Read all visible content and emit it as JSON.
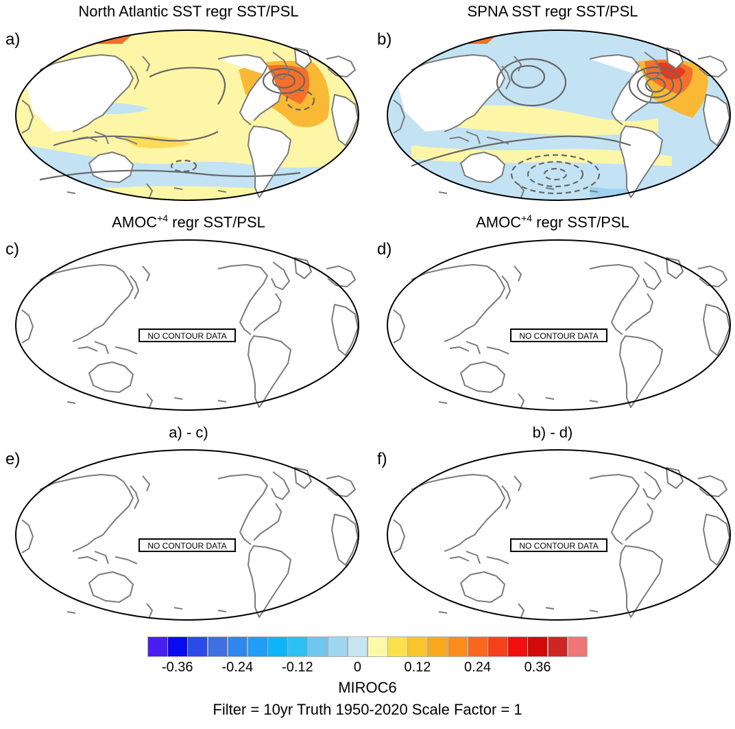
{
  "panels": [
    {
      "letter": "a)",
      "title": "North Atlantic SST regr SST/PSL",
      "title_sup": "",
      "title_tail": "",
      "has_data": true,
      "variant": "nasst"
    },
    {
      "letter": "b)",
      "title": "SPNA SST regr SST/PSL",
      "title_sup": "",
      "title_tail": "",
      "has_data": true,
      "variant": "spna"
    },
    {
      "letter": "c)",
      "title": "AMOC",
      "title_sup": "+4",
      "title_tail": " regr SST/PSL",
      "has_data": false,
      "message": "NO CONTOUR DATA"
    },
    {
      "letter": "d)",
      "title": "AMOC",
      "title_sup": "+4",
      "title_tail": " regr SST/PSL",
      "has_data": false,
      "message": "NO CONTOUR DATA"
    },
    {
      "letter": "e)",
      "title": "a) - c)",
      "title_sup": "",
      "title_tail": "",
      "has_data": false,
      "message": "NO CONTOUR DATA"
    },
    {
      "letter": "f)",
      "title": "b) - d)",
      "title_sup": "",
      "title_tail": "",
      "has_data": false,
      "message": "NO CONTOUR DATA"
    }
  ],
  "colorbar": {
    "colors": [
      "#4a1ef0",
      "#0b0bf0",
      "#2b4be6",
      "#3f6fe0",
      "#2f86ee",
      "#1f9df7",
      "#0fb4f7",
      "#2dc0f5",
      "#6fc6ee",
      "#9ed6f1",
      "#c6e6f4",
      "#fdf9a8",
      "#fbe04c",
      "#fbc52c",
      "#fba91c",
      "#fa8c1c",
      "#f8671c",
      "#f5421a",
      "#f10f10",
      "#d30a0a",
      "#cf2424",
      "#ee7676"
    ],
    "labels": [
      "-0.36",
      "-0.24",
      "-0.12",
      "0",
      "0.12",
      "0.24",
      "0.36"
    ],
    "label_positions": [
      1.5,
      4.5,
      7.5,
      10.5,
      13.5,
      16.5,
      19.5
    ]
  },
  "footer": {
    "model": "MIROC6",
    "info": "Filter = 10yr   Truth 1950-2020   Scale Factor = 1"
  },
  "palette": {
    "coast": "#7a7a7a",
    "contour": "#666666",
    "warm_light": "#fdf6a6",
    "warm_mid": "#fbdc5a",
    "warm": "#f9b934",
    "hot": "#f4702a",
    "hotter": "#e83a1e",
    "cool": "#c3e3f4",
    "cool_mid": "#9dd3f0"
  }
}
